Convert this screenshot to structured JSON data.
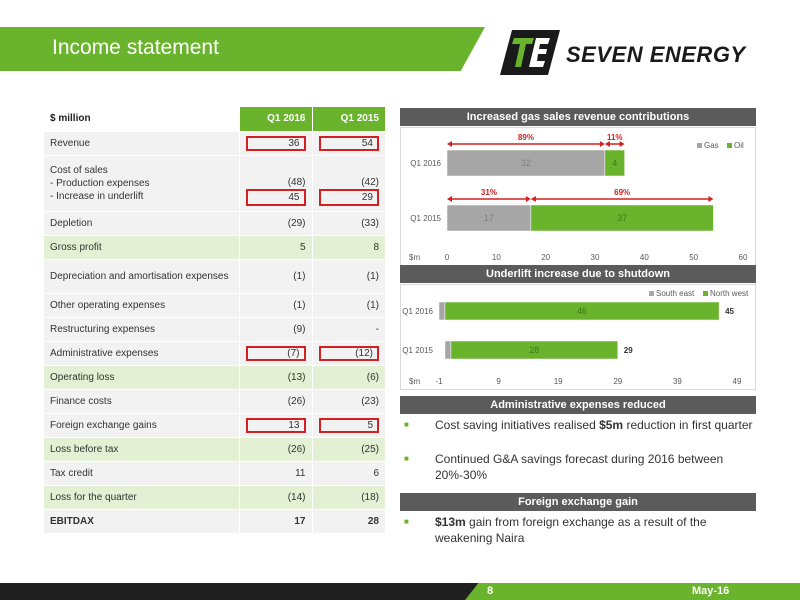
{
  "header": {
    "title": "Income statement"
  },
  "logo": {
    "text": "SEVEN ENERGY"
  },
  "table": {
    "unit": "$ million",
    "col1": "Q1 2016",
    "col2": "Q1 2015",
    "rows": [
      {
        "label": "Revenue",
        "v1": "36",
        "v2": "54"
      },
      {
        "label": "Cost of sales",
        "sub1": "- Production expenses",
        "sub2": "- Increase in underlift",
        "v1a": "(48)",
        "v2a": "(42)",
        "v1b": "45",
        "v2b": "29"
      },
      {
        "label": "Depletion",
        "v1": "(29)",
        "v2": "(33)"
      },
      {
        "label": "Gross profit",
        "v1": "5",
        "v2": "8"
      },
      {
        "label": "Depreciation and amortisation expenses",
        "v1": "(1)",
        "v2": "(1)"
      },
      {
        "label": "Other operating expenses",
        "v1": "(1)",
        "v2": "(1)"
      },
      {
        "label": "Restructuring expenses",
        "v1": "(9)",
        "v2": "-"
      },
      {
        "label": "Administrative expenses",
        "v1": "(7)",
        "v2": "(12)"
      },
      {
        "label": "Operating loss",
        "v1": "(13)",
        "v2": "(6)"
      },
      {
        "label": "Finance costs",
        "v1": "(26)",
        "v2": "(23)"
      },
      {
        "label": "Foreign exchange gains",
        "v1": "13",
        "v2": "5"
      },
      {
        "label": "Loss before tax",
        "v1": "(26)",
        "v2": "(25)"
      },
      {
        "label": "Tax credit",
        "v1": "11",
        "v2": "6"
      },
      {
        "label": "Loss for the quarter",
        "v1": "(14)",
        "v2": "(18)"
      },
      {
        "label": "EBITDAX",
        "v1": "17",
        "v2": "28"
      }
    ]
  },
  "sections": {
    "revenue": "Increased gas sales revenue contributions",
    "underlift": "Underlift increase due to shutdown",
    "admin": "Administrative expenses reduced",
    "fx": "Foreign exchange gain"
  },
  "bullets": {
    "admin1_pre": "Cost saving initiatives realised ",
    "admin1_bold": "$5m",
    "admin1_post": " reduction in first quarter",
    "admin2": "Continued G&A savings forecast during 2016 between 20%-30%",
    "fx1_bold": "$13m",
    "fx1_post": " gain from foreign exchange as a result of the weakening Naira"
  },
  "footer": {
    "page": "8",
    "date": "May-16"
  },
  "colors": {
    "green": "#6ab42d",
    "gray": "#a6a6a6",
    "dark": "#1f1f1f",
    "red": "#d32020"
  },
  "chart_data": [
    {
      "type": "bar",
      "orientation": "horizontal",
      "stacked": true,
      "categories": [
        "Q1 2016",
        "Q1 2015"
      ],
      "series": [
        {
          "name": "Gas",
          "values": [
            32,
            17
          ],
          "color": "#a6a6a6"
        },
        {
          "name": "Oil",
          "values": [
            4,
            37
          ],
          "color": "#6ab42d"
        }
      ],
      "annotations": {
        "Q1 2016": {
          "Gas": "89%",
          "Oil": "11%"
        },
        "Q1 2015": {
          "Gas": "31%",
          "Oil": "69%"
        }
      },
      "xlabel": "$m",
      "xlim": [
        0,
        60
      ],
      "ticks": [
        "0",
        "10",
        "20",
        "30",
        "40",
        "50",
        "60"
      ],
      "legend": "top-right"
    },
    {
      "type": "bar",
      "orientation": "horizontal",
      "stacked": true,
      "categories": [
        "Q1 2016",
        "Q1 2015"
      ],
      "series": [
        {
          "name": "South east",
          "values": [
            -1,
            1
          ],
          "color": "#a6a6a6"
        },
        {
          "name": "North west",
          "values": [
            46,
            28
          ],
          "color": "#6ab42d"
        }
      ],
      "totals": [
        "45",
        "29"
      ],
      "xlabel": "$m",
      "xlim": [
        -1,
        49
      ],
      "ticks": [
        "-1",
        "9",
        "19",
        "29",
        "39",
        "49"
      ],
      "legend": "top-right"
    }
  ]
}
